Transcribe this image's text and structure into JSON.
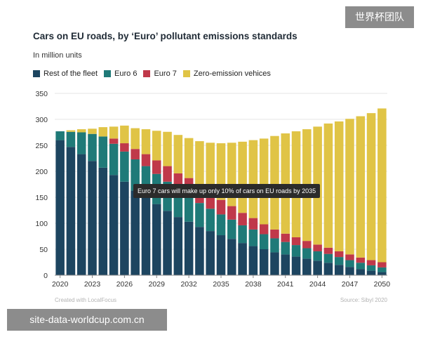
{
  "watermark_top": "世界杯团队",
  "watermark_bottom": "site-data-worldcup.com.cn",
  "chart_data": {
    "type": "bar",
    "stacked": true,
    "title": "Cars on EU roads, by ‘Euro’ pollutant emissions standards",
    "subtitle": "In million units",
    "xlabel": "",
    "ylabel": "",
    "ylim": [
      0,
      350
    ],
    "yticks": [
      0,
      50,
      100,
      150,
      200,
      250,
      300,
      350
    ],
    "grid": true,
    "legend_position": "top-left",
    "x": [
      2020,
      2021,
      2022,
      2023,
      2024,
      2025,
      2026,
      2027,
      2028,
      2029,
      2030,
      2031,
      2032,
      2033,
      2034,
      2035,
      2036,
      2037,
      2038,
      2039,
      2040,
      2041,
      2042,
      2043,
      2044,
      2045,
      2046,
      2047,
      2048,
      2049,
      2050
    ],
    "xtick_labels": [
      "2020",
      "2023",
      "2026",
      "2029",
      "2032",
      "2035",
      "2038",
      "2041",
      "2044",
      "2047",
      "2050"
    ],
    "series": [
      {
        "name": "Rest of the fleet",
        "color": "#1d4560",
        "values": [
          260,
          247,
          233,
          220,
          207,
          193,
          180,
          163,
          150,
          137,
          124,
          112,
          103,
          93,
          85,
          77,
          70,
          62,
          56,
          50,
          44,
          40,
          36,
          32,
          28,
          24,
          20,
          16,
          12,
          9,
          6
        ]
      },
      {
        "name": "Euro 6",
        "color": "#1f7a78",
        "values": [
          17,
          29,
          42,
          52,
          60,
          60,
          58,
          60,
          60,
          58,
          56,
          52,
          50,
          46,
          43,
          40,
          37,
          34,
          32,
          29,
          27,
          24,
          22,
          20,
          18,
          17,
          15,
          13,
          12,
          10,
          9
        ]
      },
      {
        "name": "Euro 7",
        "color": "#c0394a",
        "values": [
          0,
          0,
          0,
          0,
          0,
          10,
          16,
          20,
          23,
          26,
          30,
          32,
          34,
          34,
          31,
          28,
          26,
          24,
          22,
          19,
          17,
          16,
          15,
          14,
          13,
          12,
          11,
          11,
          10,
          10,
          10
        ]
      },
      {
        "name": "Zero-emission vehices",
        "color": "#e0c446",
        "values": [
          0,
          3,
          6,
          10,
          18,
          23,
          34,
          40,
          48,
          57,
          66,
          74,
          77,
          85,
          96,
          109,
          122,
          137,
          150,
          165,
          180,
          193,
          204,
          215,
          227,
          239,
          250,
          261,
          272,
          283,
          296
        ]
      }
    ],
    "annotation": "Euro 7 cars will make up only 10% of cars on EU roads by 2035",
    "credit": "Created with LocalFocus",
    "source": "Source: Sibyl 2020"
  }
}
